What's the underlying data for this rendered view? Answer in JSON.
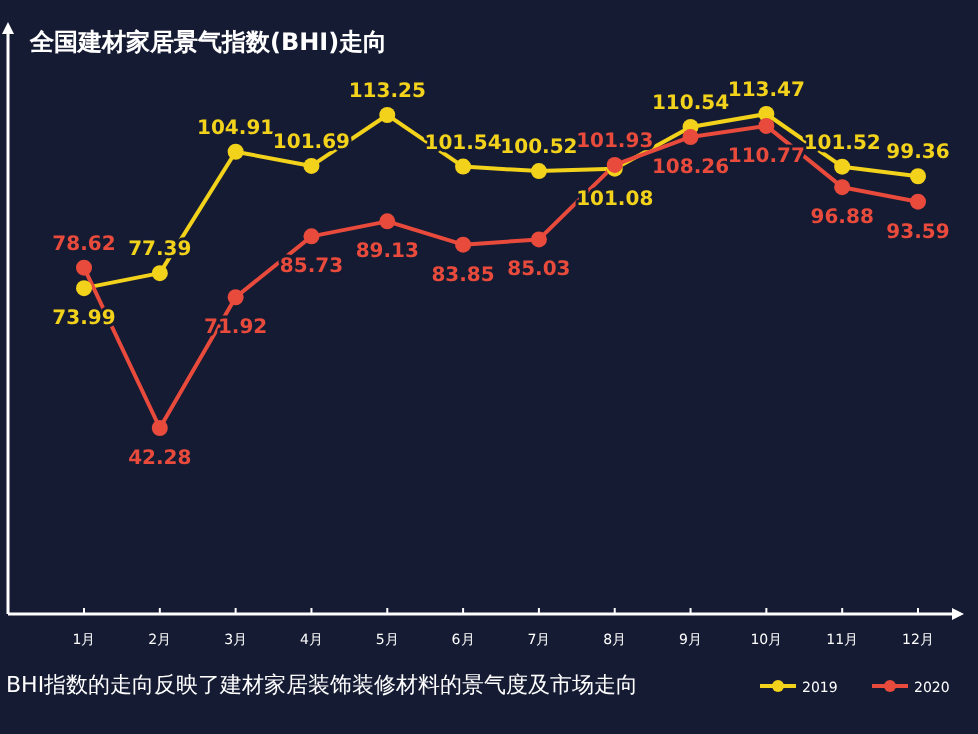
{
  "chart_data": {
    "type": "line",
    "title": "全国建材家居景气指数(BHI)走向",
    "categories": [
      "1月",
      "2月",
      "3月",
      "4月",
      "5月",
      "6月",
      "7月",
      "8月",
      "9月",
      "10月",
      "11月",
      "12月"
    ],
    "series": [
      {
        "name": "2019",
        "color": "#f2d21b",
        "values": [
          73.99,
          77.39,
          104.91,
          101.69,
          113.25,
          101.54,
          100.52,
          101.08,
          110.54,
          113.47,
          101.52,
          99.36
        ]
      },
      {
        "name": "2020",
        "color": "#e84a3c",
        "values": [
          78.62,
          42.28,
          71.92,
          85.73,
          89.13,
          83.85,
          85.03,
          101.93,
          108.26,
          110.77,
          96.88,
          93.59
        ]
      }
    ],
    "data_labels": true,
    "legend": "bottom right",
    "marker": "circle",
    "line_style": "solid",
    "annotations": [
      "BHI指数的走向反映了建材家居装饰装修材料的景气度及市场走向"
    ]
  }
}
